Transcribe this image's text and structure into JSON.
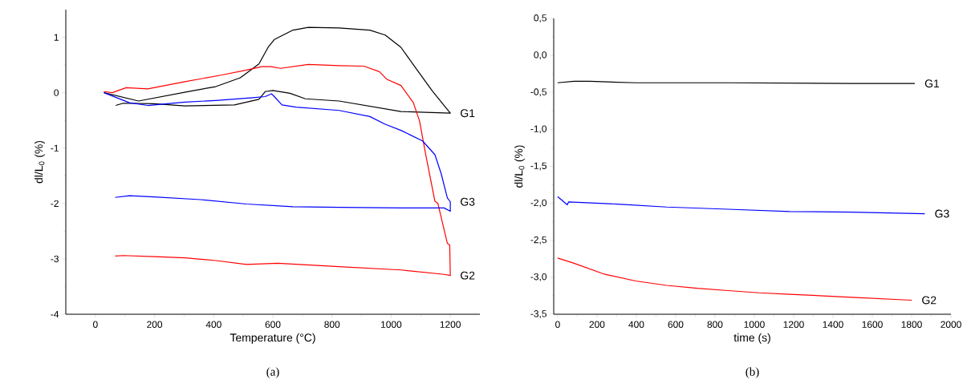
{
  "chart_data": [
    {
      "type": "line",
      "xlabel": "Temperature (°C)",
      "ylabel": "dl/L$_{0}$ (%)",
      "xlim": [
        -100,
        1300
      ],
      "ylim": [
        -4,
        1.5
      ],
      "xticks": [
        0,
        200,
        400,
        600,
        800,
        1000,
        1200
      ],
      "yticks": [
        -4,
        -3,
        -2,
        -1,
        0,
        1
      ],
      "series": [
        {
          "name": "G1",
          "color": "#000000",
          "x": [
            29,
            146,
            323,
            407,
            490,
            553,
            584,
            605,
            668,
            720,
            824,
            928,
            980,
            1033,
            1085,
            1138,
            1179,
            1200,
            1033,
            824,
            710,
            658,
            600,
            574,
            553,
            470,
            303,
            198,
            94,
            69
          ],
          "values": [
            0,
            -0.15,
            0.03,
            0.11,
            0.27,
            0.52,
            0.82,
            0.96,
            1.13,
            1.18,
            1.17,
            1.13,
            1.04,
            0.82,
            0.43,
            0.04,
            -0.23,
            -0.37,
            -0.34,
            -0.15,
            -0.11,
            -0.01,
            0.04,
            0.02,
            -0.12,
            -0.22,
            -0.24,
            -0.2,
            -0.19,
            -0.23
          ]
        },
        {
          "name": "G2",
          "color": "#ff0000",
          "x": [
            29,
            57,
            104,
            177,
            303,
            428,
            511,
            563,
            595,
            626,
            720,
            824,
            908,
            960,
            986,
            1033,
            1075,
            1096,
            1117,
            1148,
            1158,
            1190,
            1198,
            1200,
            1179,
            1033,
            824,
            616,
            511,
            407,
            303,
            198,
            94,
            67
          ],
          "values": [
            0.02,
            0,
            0.09,
            0.07,
            0.2,
            0.32,
            0.41,
            0.47,
            0.47,
            0.44,
            0.51,
            0.49,
            0.48,
            0.38,
            0.24,
            0.13,
            -0.18,
            -0.51,
            -1.12,
            -1.96,
            -2.0,
            -2.72,
            -2.75,
            -3.3,
            -3.28,
            -3.2,
            -3.14,
            -3.08,
            -3.1,
            -3.03,
            -2.98,
            -2.96,
            -2.94,
            -2.95
          ]
        },
        {
          "name": "G3",
          "color": "#0000ff",
          "x": [
            29,
            115,
            177,
            303,
            407,
            532,
            574,
            595,
            605,
            631,
            678,
            824,
            928,
            980,
            1033,
            1106,
            1148,
            1169,
            1190,
            1200,
            1200,
            1179,
            1033,
            824,
            668,
            511,
            355,
            198,
            115,
            67
          ],
          "values": [
            0,
            -0.18,
            -0.23,
            -0.17,
            -0.14,
            -0.09,
            -0.07,
            -0.02,
            -0.07,
            -0.22,
            -0.26,
            -0.32,
            -0.43,
            -0.57,
            -0.68,
            -0.87,
            -1.12,
            -1.46,
            -1.9,
            -1.97,
            -2.14,
            -2.08,
            -2.08,
            -2.07,
            -2.06,
            -2.01,
            -1.93,
            -1.88,
            -1.86,
            -1.89
          ]
        }
      ],
      "annotations": [
        "(a)"
      ]
    },
    {
      "type": "line",
      "xlabel": "time (s)",
      "ylabel": "dl/L$_{0}$ (%)",
      "xlim": [
        -20,
        2000
      ],
      "ylim": [
        -3.5,
        0.5
      ],
      "xticks": [
        0,
        200,
        400,
        600,
        800,
        1000,
        1200,
        1400,
        1600,
        1800,
        2000
      ],
      "yticks": [
        {
          "value": -3.5,
          "label": "-3,5"
        },
        {
          "value": -3.0,
          "label": "-3,0"
        },
        {
          "value": -2.5,
          "label": "-2,5"
        },
        {
          "value": -2.0,
          "label": "-2,0"
        },
        {
          "value": -1.5,
          "label": "-1,5"
        },
        {
          "value": -1.0,
          "label": "-1,0"
        },
        {
          "value": -0.5,
          "label": "-0,5"
        },
        {
          "value": 0.0,
          "label": "0,0"
        },
        {
          "value": 0.5,
          "label": "0,5"
        }
      ],
      "series": [
        {
          "name": "G1",
          "color": "#000000",
          "x": [
            0,
            83,
            162,
            397,
            867,
            1495,
            1816
          ],
          "values": [
            -0.37,
            -0.35,
            -0.35,
            -0.37,
            -0.37,
            -0.38,
            -0.38
          ]
        },
        {
          "name": "G3",
          "color": "#0000ff",
          "x": [
            0,
            49,
            56,
            303,
            554,
            867,
            1181,
            1495,
            1867
          ],
          "values": [
            -1.91,
            -2.02,
            -1.98,
            -2.01,
            -2.05,
            -2.08,
            -2.11,
            -2.12,
            -2.14
          ]
        },
        {
          "name": "G2",
          "color": "#ff0000",
          "x": [
            0,
            83,
            240,
            397,
            554,
            711,
            867,
            1024,
            1181,
            1495,
            1801
          ],
          "values": [
            -2.74,
            -2.81,
            -2.96,
            -3.05,
            -3.11,
            -3.15,
            -3.18,
            -3.21,
            -3.23,
            -3.27,
            -3.31
          ]
        }
      ],
      "annotations": [
        "(b)"
      ]
    }
  ]
}
